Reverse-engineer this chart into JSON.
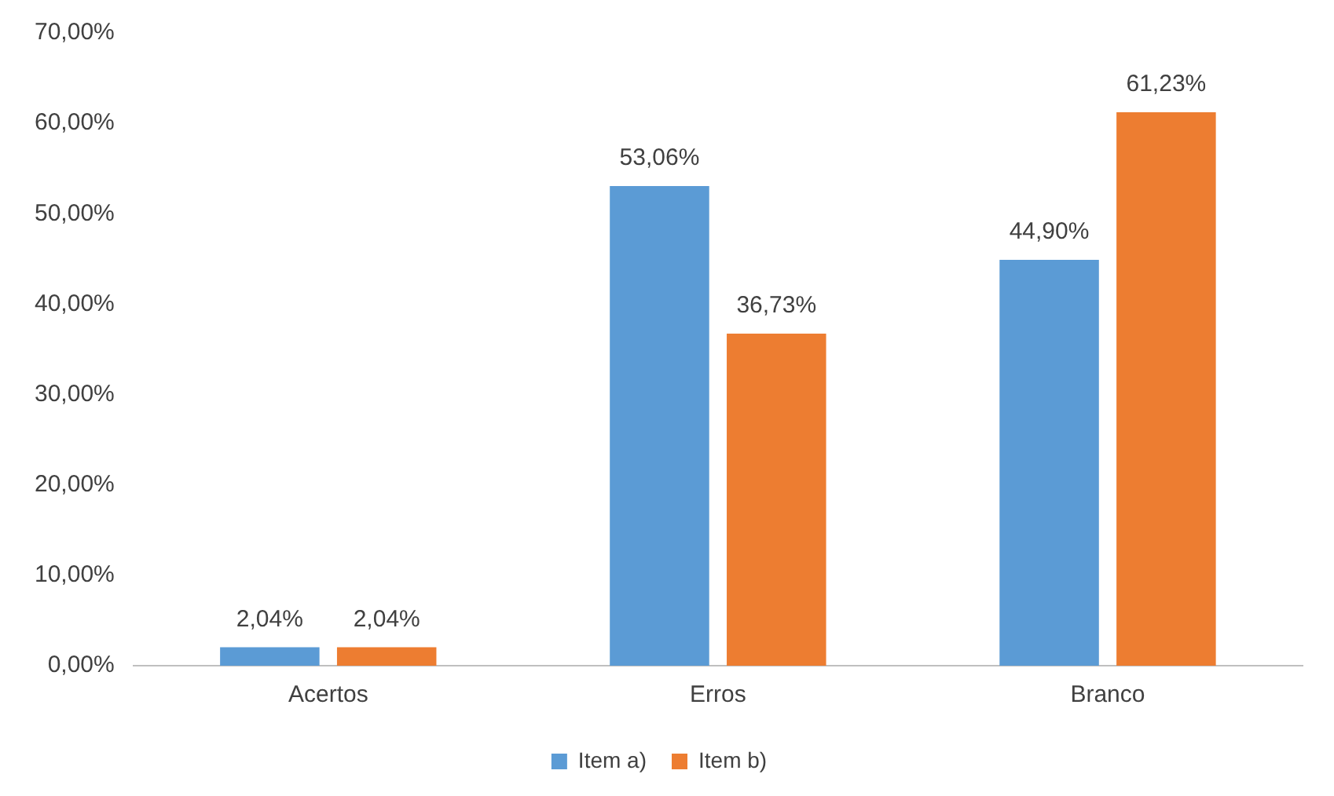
{
  "chart_data": {
    "type": "bar",
    "categories": [
      "Acertos",
      "Erros",
      "Branco"
    ],
    "series": [
      {
        "name": "Item a)",
        "color": "#5b9bd5",
        "values": [
          2.04,
          53.06,
          44.9
        ],
        "value_labels": [
          "2,04%",
          "53,06%",
          "44,90%"
        ]
      },
      {
        "name": "Item b)",
        "color": "#ed7d31",
        "values": [
          2.04,
          36.73,
          61.23
        ],
        "value_labels": [
          "2,04%",
          "36,73%",
          "61,23%"
        ]
      }
    ],
    "ylim": [
      0,
      70
    ],
    "yticks": [
      {
        "value": 0,
        "label": "0,00%"
      },
      {
        "value": 10,
        "label": "10,00%"
      },
      {
        "value": 20,
        "label": "20,00%"
      },
      {
        "value": 30,
        "label": "30,00%"
      },
      {
        "value": 40,
        "label": "40,00%"
      },
      {
        "value": 50,
        "label": "50,00%"
      },
      {
        "value": 60,
        "label": "60,00%"
      },
      {
        "value": 70,
        "label": "70,00%"
      }
    ],
    "grid": false,
    "legend": "bottom"
  }
}
